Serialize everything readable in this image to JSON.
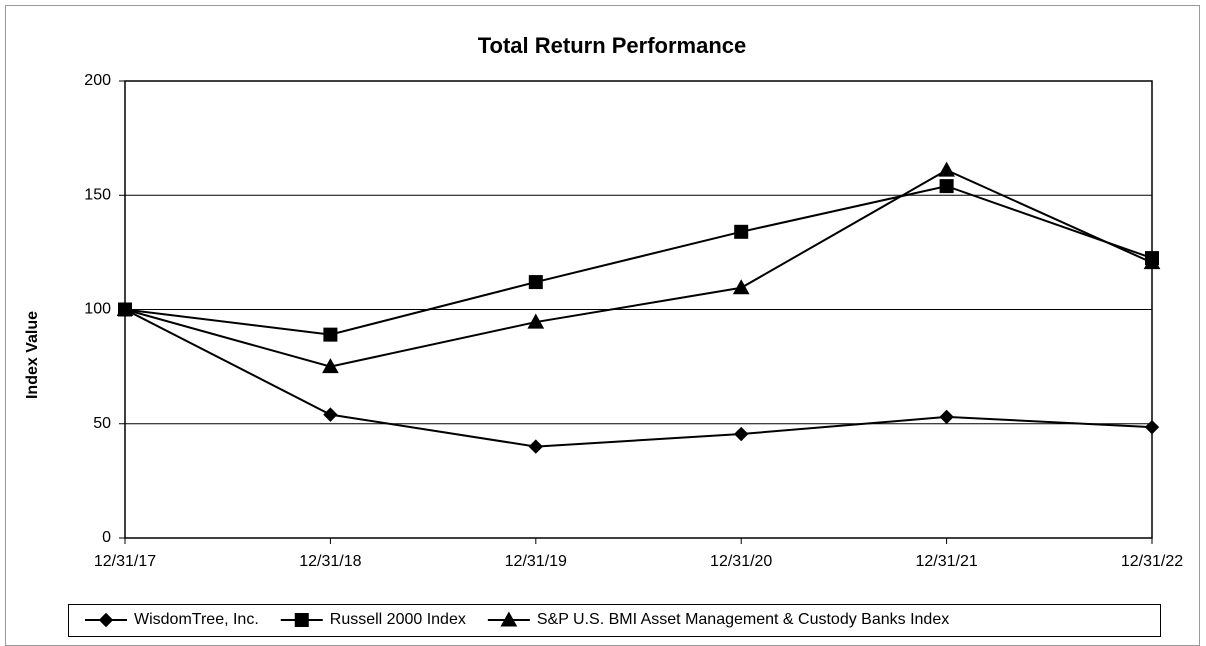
{
  "chart_data": {
    "type": "line",
    "title": "Total Return Performance",
    "y_label": "Index Value",
    "categories": [
      "12/31/17",
      "12/31/18",
      "12/31/19",
      "12/31/20",
      "12/31/21",
      "12/31/22"
    ],
    "series": [
      {
        "name": "WisdomTree, Inc.",
        "color": "#000000",
        "marker": "diamond",
        "values": [
          100,
          54,
          40,
          45.5,
          53,
          48.5
        ]
      },
      {
        "name": "Russell 2000 Index",
        "color": "#000000",
        "marker": "square",
        "values": [
          100,
          89,
          112,
          134,
          154,
          122.5
        ]
      },
      {
        "name": "S&P U.S. BMI Asset Management & Custody Banks Index",
        "color": "#000000",
        "marker": "triangle",
        "values": [
          100,
          75,
          94.5,
          109.5,
          161,
          120.5
        ]
      }
    ],
    "ylim": [
      0,
      200
    ],
    "yticks": [
      0,
      50,
      100,
      150,
      200
    ],
    "grid": true,
    "legend": "bottom"
  }
}
